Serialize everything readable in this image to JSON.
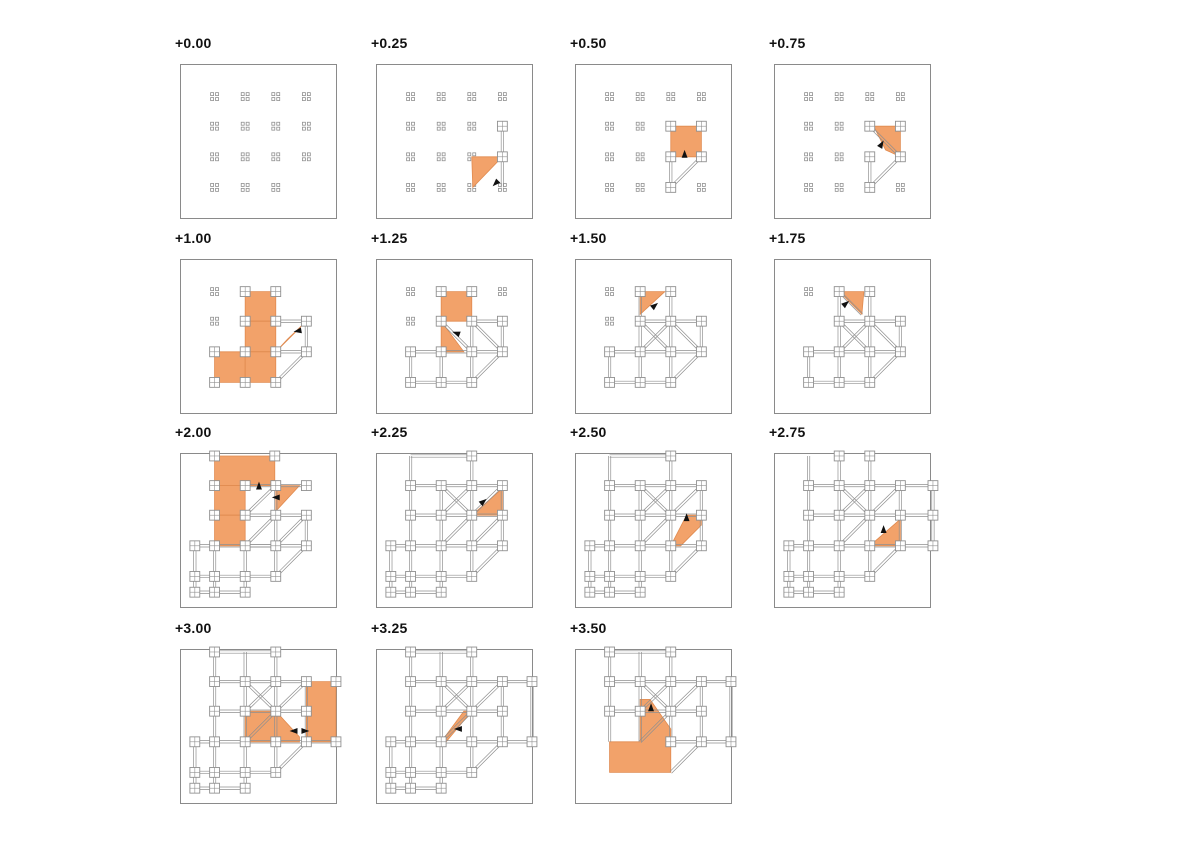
{
  "colors": {
    "fill": "#f2a26a",
    "fill_stroke": "#e08a4f",
    "line": "#8f8f8f",
    "frame": "#8a8a8a",
    "arrow": "#111111"
  },
  "frames": [
    {
      "label": "+0.00"
    },
    {
      "label": "+0.25"
    },
    {
      "label": "+0.50"
    },
    {
      "label": "+0.75"
    },
    {
      "label": "+1.00"
    },
    {
      "label": "+1.25"
    },
    {
      "label": "+1.50"
    },
    {
      "label": "+1.75"
    },
    {
      "label": "+2.00"
    },
    {
      "label": "+2.25"
    },
    {
      "label": "+2.50"
    },
    {
      "label": "+2.75"
    },
    {
      "label": "+3.00"
    },
    {
      "label": "+3.25"
    },
    {
      "label": "+3.50"
    }
  ]
}
